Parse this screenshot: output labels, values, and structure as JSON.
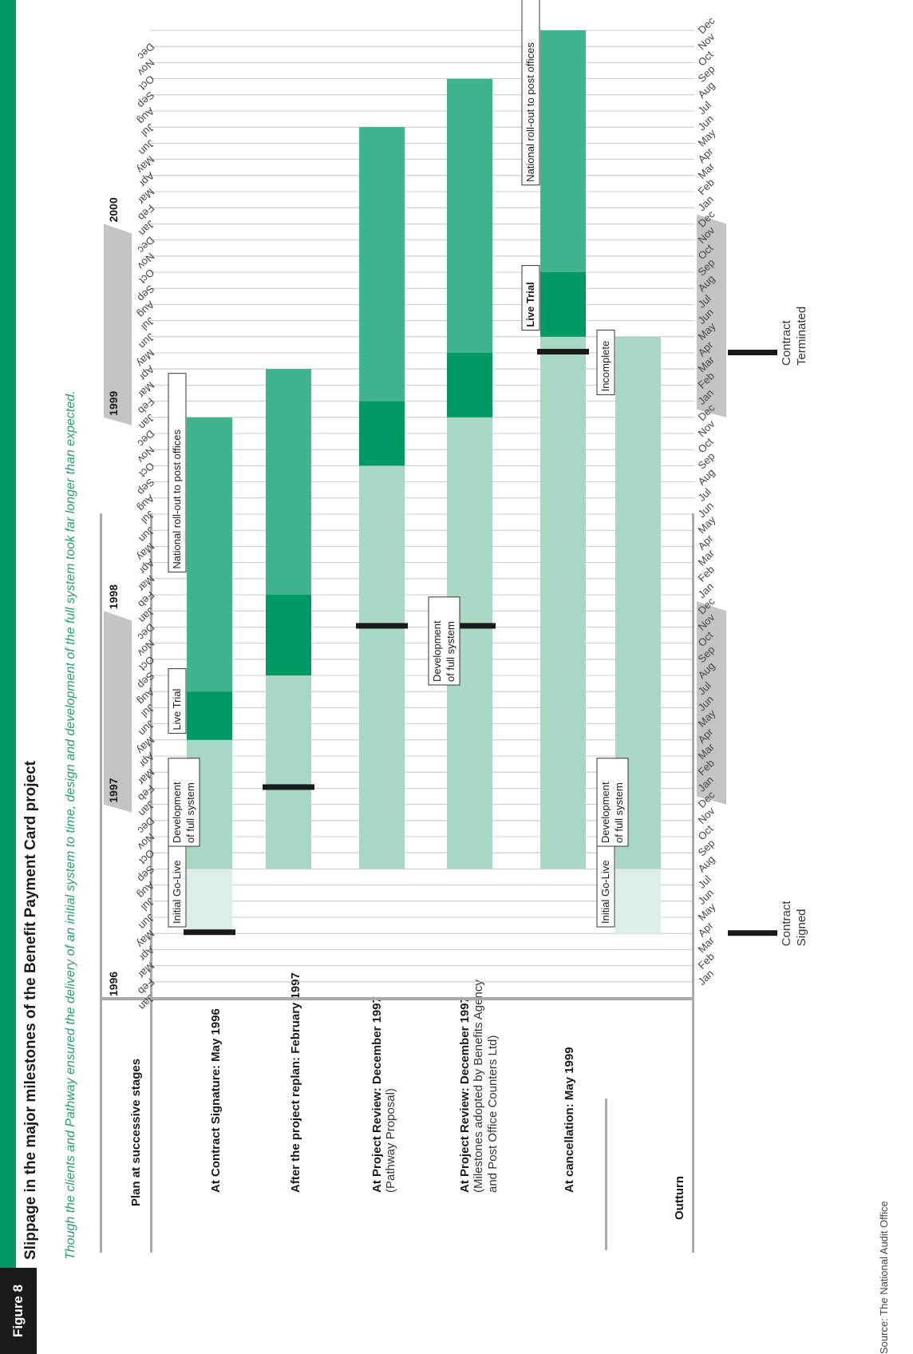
{
  "figure_label": "Figure 8",
  "title": "Slippage in the major milestones of the Benefit Payment Card project",
  "subtitle": "Though the clients and Pathway ensured the delivery of an initial system to time, design and development of the full system took far longer than expected.",
  "column_header": "Plan at successive stages",
  "source": "Source: The National Audit Office",
  "colors": {
    "brand_green": "#009966",
    "initial_golive": "#dbeee7",
    "development": "#a8d8c3",
    "live_trial": "#009966",
    "rollout": "#40b38f",
    "milestone_marker": "#1a1a1a",
    "year_band": "#c4c4c4"
  },
  "stage_labels": [
    {
      "bold": "At Contract Signature: May 1996",
      "note": []
    },
    {
      "bold": "After the project replan: February 1997",
      "note": []
    },
    {
      "bold": "At Project Review: December 1997",
      "note": [
        "(Pathway Proposal)"
      ]
    },
    {
      "bold": "At Project Review: December 1997",
      "note": [
        "(Milestones adopted by Benefits Agency",
        "and Post Office Counters Ltd)"
      ]
    },
    {
      "bold": "At cancellation: May 1999",
      "note": []
    }
  ],
  "outturn_label": "Outturn",
  "annotations": {
    "contract_signed": [
      "Contract",
      "Signed"
    ],
    "contract_terminated": [
      "Contract",
      "Terminated"
    ]
  },
  "chart_data": {
    "type": "gantt",
    "time_axis": {
      "start": "Jan 1996",
      "end": "Dec 2000",
      "years": [
        "1996",
        "1997",
        "1998",
        "1999",
        "2000"
      ],
      "months": [
        "Jan",
        "Feb",
        "Mar",
        "Apr",
        "May",
        "Jun",
        "Jul",
        "Aug",
        "Sep",
        "Oct",
        "Nov",
        "Dec"
      ]
    },
    "rows": [
      {
        "stage": "At Contract Signature: May 1996",
        "milestone": "May 1996",
        "segments": [
          {
            "phase": "Initial Go-Live",
            "start": "May 1996",
            "end": "Aug 1996"
          },
          {
            "phase": "Development of full system",
            "start": "Sep 1996",
            "end": "Apr 1997"
          },
          {
            "phase": "Live Trial",
            "start": "May 1997",
            "end": "Jul 1997"
          },
          {
            "phase": "National roll-out to post offices",
            "start": "Aug 1997",
            "end": "Dec 1998"
          }
        ]
      },
      {
        "stage": "After the project replan: February 1997",
        "milestone": "Feb 1997",
        "segments": [
          {
            "phase": "Development of full system",
            "start": "Sep 1996",
            "end": "Aug 1997"
          },
          {
            "phase": "Live Trial",
            "start": "Sep 1997",
            "end": "Jan 1998"
          },
          {
            "phase": "National roll-out to post offices",
            "start": "Feb 1998",
            "end": "Mar 1999"
          }
        ]
      },
      {
        "stage": "At Project Review: December 1997 (Pathway Proposal)",
        "milestone": "Dec 1997",
        "segments": [
          {
            "phase": "Development of full system",
            "start": "Sep 1996",
            "end": "Sep 1998"
          },
          {
            "phase": "Live Trial",
            "start": "Oct 1998",
            "end": "Jan 1999"
          },
          {
            "phase": "National roll-out to post offices",
            "start": "Feb 1999",
            "end": "Jun 2000"
          }
        ]
      },
      {
        "stage": "At Project Review: December 1997 (Milestones adopted by Benefits Agency and Post Office Counters Ltd)",
        "milestone": "Dec 1997",
        "segments": [
          {
            "phase": "Development of full system",
            "start": "Sep 1996",
            "end": "Dec 1998"
          },
          {
            "phase": "Live Trial",
            "start": "Jan 1999",
            "end": "Apr 1999"
          },
          {
            "phase": "National roll-out to post offices",
            "start": "May 1999",
            "end": "Sep 2000"
          }
        ]
      },
      {
        "stage": "At cancellation: May 1999",
        "milestone": "May 1999",
        "segments": [
          {
            "phase": "Development of full system",
            "start": "Sep 1996",
            "end": "May 1999"
          },
          {
            "phase": "Live Trial",
            "start": "Jun 1999",
            "end": "Sep 1999"
          },
          {
            "phase": "National roll-out to post offices",
            "start": "Oct 1999",
            "end": "Dec 2000"
          }
        ]
      },
      {
        "stage": "Outturn",
        "segments": [
          {
            "phase": "Initial Go-Live",
            "start": "May 1996",
            "end": "Aug 1996"
          },
          {
            "phase": "Development of full system",
            "start": "Sep 1996",
            "end": "May 1999"
          }
        ]
      }
    ],
    "event_markers": [
      {
        "label": "Contract Signed",
        "at": "May 1996"
      },
      {
        "label": "Contract Terminated",
        "at": "May 1999"
      }
    ],
    "callouts": [
      {
        "row": 0,
        "text": [
          "Initial Go-Live"
        ],
        "at": "Jun 1996"
      },
      {
        "row": 0,
        "text": [
          "Development",
          "of full system"
        ],
        "at": "Nov 1996"
      },
      {
        "row": 0,
        "text": [
          "Live Trial"
        ],
        "at": "Jun 1997"
      },
      {
        "row": 0,
        "text": [
          "National roll-out to post offices"
        ],
        "at": "Apr 1998"
      },
      {
        "row": 3,
        "text": [
          "Development",
          "of full system"
        ],
        "at": "Sep 1997"
      },
      {
        "row": 4,
        "text": [
          "Live Trial"
        ],
        "at": "Jul 1999",
        "bold": true
      },
      {
        "row": 4,
        "text": [
          "National roll-out to post offices"
        ],
        "at": "Apr 2000"
      },
      {
        "row": 5,
        "text": [
          "Initial Go-Live"
        ],
        "at": "Jun 1996"
      },
      {
        "row": 5,
        "text": [
          "Development",
          "of full system"
        ],
        "at": "Nov 1996"
      },
      {
        "row": 5,
        "text": [
          "Incomplete"
        ],
        "at": "Mar 1999"
      }
    ]
  }
}
